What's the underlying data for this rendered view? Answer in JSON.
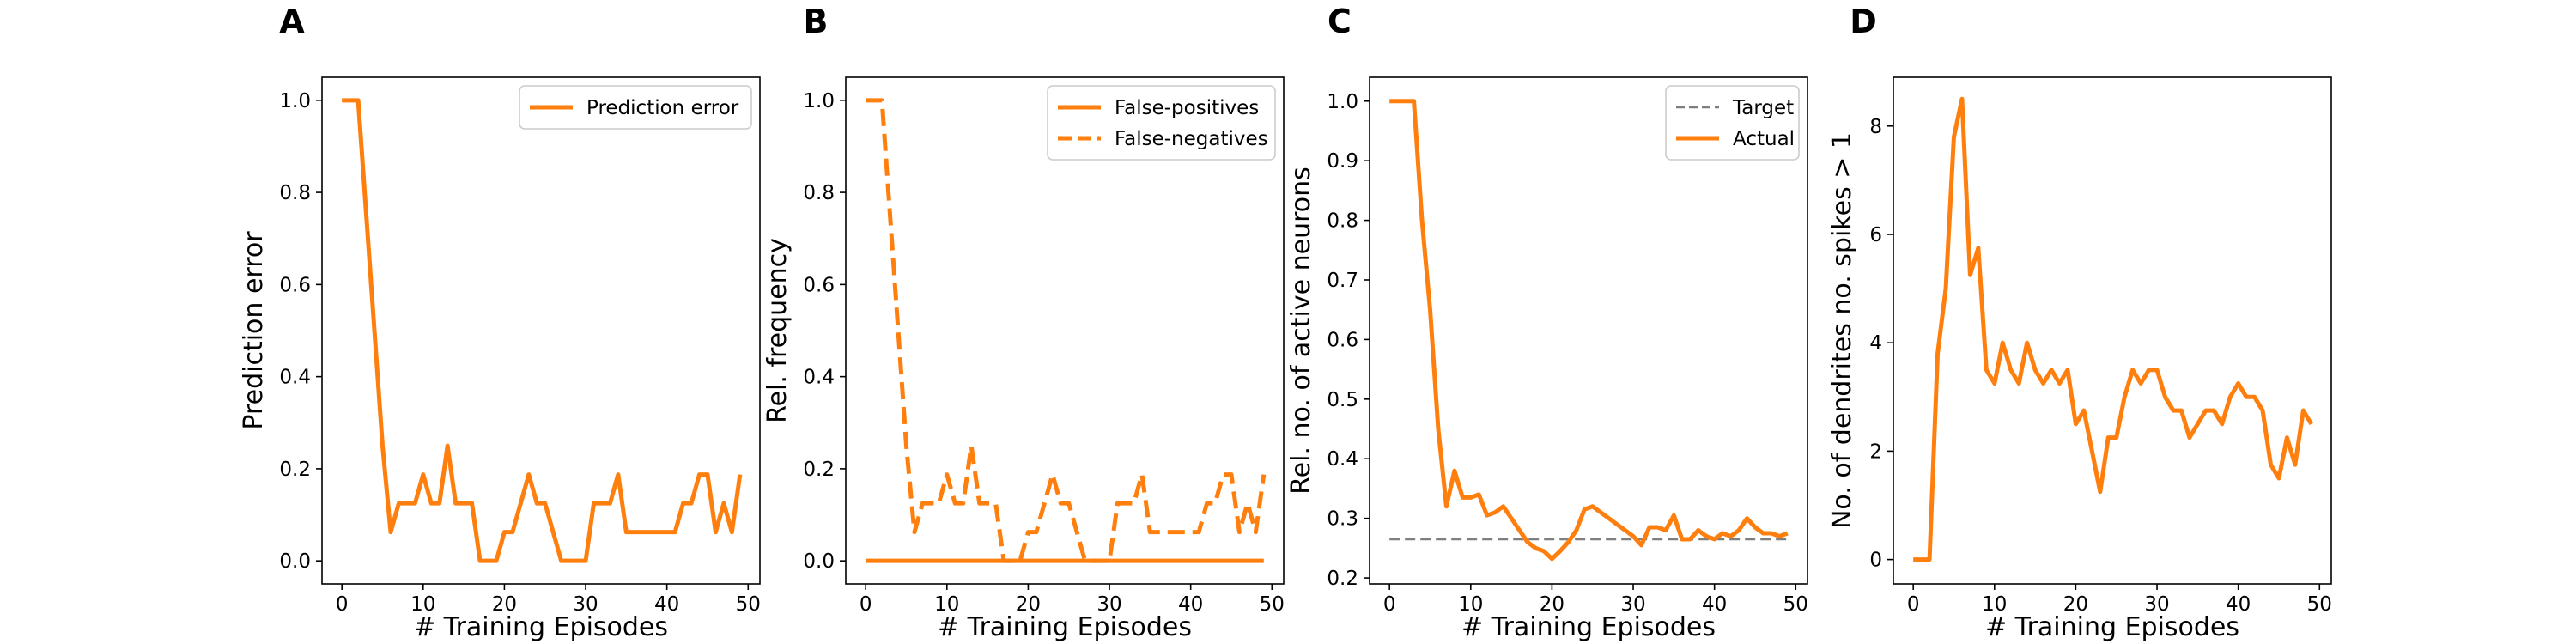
{
  "chart_data": [
    {
      "panel": "A",
      "type": "line",
      "xlabel": "# Training Episodes",
      "ylabel": "Prediction error",
      "xlim": [
        -2.45,
        51.45
      ],
      "ylim": [
        -0.05,
        1.05
      ],
      "xticks": [
        0,
        10,
        20,
        30,
        40,
        50
      ],
      "yticks": [
        0.0,
        0.2,
        0.4,
        0.6,
        0.8,
        1.0
      ],
      "ytick_labels": [
        "0.0",
        "0.2",
        "0.4",
        "0.6",
        "0.8",
        "1.0"
      ],
      "legend_position": "top-right",
      "series": [
        {
          "name": "Prediction error",
          "color": "#ff7f0e",
          "style": "solid",
          "x": [
            0,
            1,
            2,
            3,
            4,
            5,
            6,
            7,
            8,
            9,
            10,
            11,
            12,
            13,
            14,
            15,
            16,
            17,
            18,
            19,
            20,
            21,
            22,
            23,
            24,
            25,
            26,
            27,
            28,
            29,
            30,
            31,
            32,
            33,
            34,
            35,
            36,
            37,
            38,
            39,
            40,
            41,
            42,
            43,
            44,
            45,
            46,
            47,
            48,
            49
          ],
          "y": [
            1.0,
            1.0,
            1.0,
            0.75,
            0.5,
            0.25,
            0.0625,
            0.125,
            0.125,
            0.125,
            0.1875,
            0.125,
            0.125,
            0.25,
            0.125,
            0.125,
            0.125,
            0.0,
            0.0,
            0.0,
            0.0625,
            0.0625,
            0.125,
            0.1875,
            0.125,
            0.125,
            0.0625,
            0.0,
            0.0,
            0.0,
            0.0,
            0.125,
            0.125,
            0.125,
            0.1875,
            0.0625,
            0.0625,
            0.0625,
            0.0625,
            0.0625,
            0.0625,
            0.0625,
            0.125,
            0.125,
            0.1875,
            0.1875,
            0.0625,
            0.125,
            0.0625,
            0.1875
          ]
        }
      ]
    },
    {
      "panel": "B",
      "type": "line",
      "xlabel": "# Training Episodes",
      "ylabel": "Rel. frequency",
      "xlim": [
        -2.45,
        51.45
      ],
      "ylim": [
        -0.05,
        1.05
      ],
      "xticks": [
        0,
        10,
        20,
        30,
        40,
        50
      ],
      "yticks": [
        0.0,
        0.2,
        0.4,
        0.6,
        0.8,
        1.0
      ],
      "ytick_labels": [
        "0.0",
        "0.2",
        "0.4",
        "0.6",
        "0.8",
        "1.0"
      ],
      "legend_position": "top-right",
      "series": [
        {
          "name": "False-positives",
          "color": "#ff7f0e",
          "style": "solid",
          "x": [
            0,
            49
          ],
          "y": [
            0.0,
            0.0
          ]
        },
        {
          "name": "False-negatives",
          "color": "#ff7f0e",
          "style": "dashed",
          "x": [
            0,
            1,
            2,
            3,
            4,
            5,
            6,
            7,
            8,
            9,
            10,
            11,
            12,
            13,
            14,
            15,
            16,
            17,
            18,
            19,
            20,
            21,
            22,
            23,
            24,
            25,
            26,
            27,
            28,
            29,
            30,
            31,
            32,
            33,
            34,
            35,
            36,
            37,
            38,
            39,
            40,
            41,
            42,
            43,
            44,
            45,
            46,
            47,
            48,
            49
          ],
          "y": [
            1.0,
            1.0,
            1.0,
            0.75,
            0.5,
            0.25,
            0.0625,
            0.125,
            0.125,
            0.125,
            0.1875,
            0.125,
            0.125,
            0.25,
            0.125,
            0.125,
            0.125,
            0.0,
            0.0,
            0.0,
            0.0625,
            0.0625,
            0.125,
            0.1875,
            0.125,
            0.125,
            0.0625,
            0.0,
            0.0,
            0.0,
            0.0,
            0.125,
            0.125,
            0.125,
            0.1875,
            0.0625,
            0.0625,
            0.0625,
            0.0625,
            0.0625,
            0.0625,
            0.0625,
            0.125,
            0.125,
            0.1875,
            0.1875,
            0.0625,
            0.125,
            0.0625,
            0.1875
          ]
        }
      ]
    },
    {
      "panel": "C",
      "type": "line",
      "xlabel": "# Training Episodes",
      "ylabel": "Rel. no. of active neurons",
      "xlim": [
        -2.45,
        51.45
      ],
      "ylim": [
        0.19,
        1.04
      ],
      "xticks": [
        0,
        10,
        20,
        30,
        40,
        50
      ],
      "yticks": [
        0.2,
        0.3,
        0.4,
        0.5,
        0.6,
        0.7,
        0.8,
        0.9,
        1.0
      ],
      "ytick_labels": [
        "0.2",
        "0.3",
        "0.4",
        "0.5",
        "0.6",
        "0.7",
        "0.8",
        "0.9",
        "1.0"
      ],
      "legend_position": "top-right",
      "series": [
        {
          "name": "Target",
          "color": "#7f7f7f",
          "style": "dashed",
          "x": [
            0,
            49
          ],
          "y": [
            0.265,
            0.265
          ]
        },
        {
          "name": "Actual",
          "color": "#ff7f0e",
          "style": "solid",
          "x": [
            0,
            1,
            2,
            3,
            4,
            5,
            6,
            7,
            8,
            9,
            10,
            11,
            12,
            13,
            14,
            15,
            16,
            17,
            18,
            19,
            20,
            21,
            22,
            23,
            24,
            25,
            26,
            27,
            28,
            29,
            30,
            31,
            32,
            33,
            34,
            35,
            36,
            37,
            38,
            39,
            40,
            41,
            42,
            43,
            44,
            45,
            46,
            47,
            48,
            49
          ],
          "y": [
            1.0,
            1.0,
            1.0,
            1.0,
            0.8,
            0.65,
            0.45,
            0.32,
            0.38,
            0.335,
            0.335,
            0.34,
            0.305,
            0.31,
            0.32,
            0.3,
            0.28,
            0.26,
            0.25,
            0.245,
            0.232,
            0.245,
            0.26,
            0.28,
            0.315,
            0.32,
            0.31,
            0.3,
            0.29,
            0.28,
            0.27,
            0.255,
            0.285,
            0.285,
            0.28,
            0.305,
            0.265,
            0.265,
            0.28,
            0.27,
            0.265,
            0.275,
            0.27,
            0.28,
            0.3,
            0.285,
            0.275,
            0.275,
            0.27,
            0.275
          ]
        }
      ]
    },
    {
      "panel": "D",
      "type": "line",
      "xlabel": "# Training Episodes",
      "ylabel": "No. of dendrites no. spikes > 1",
      "xlim": [
        -2.45,
        51.45
      ],
      "ylim": [
        -0.45,
        8.9
      ],
      "xticks": [
        0,
        10,
        20,
        30,
        40,
        50
      ],
      "yticks": [
        0,
        2,
        4,
        6,
        8
      ],
      "ytick_labels": [
        "0",
        "2",
        "4",
        "6",
        "8"
      ],
      "series": [
        {
          "name": "",
          "color": "#ff7f0e",
          "style": "solid",
          "x": [
            0,
            1,
            2,
            3,
            4,
            5,
            6,
            7,
            8,
            9,
            10,
            11,
            12,
            13,
            14,
            15,
            16,
            17,
            18,
            19,
            20,
            21,
            22,
            23,
            24,
            25,
            26,
            27,
            28,
            29,
            30,
            31,
            32,
            33,
            34,
            35,
            36,
            37,
            38,
            39,
            40,
            41,
            42,
            43,
            44,
            45,
            46,
            47,
            48,
            49
          ],
          "y": [
            0.0,
            0.0,
            0.0,
            3.8,
            5.0,
            7.8,
            8.5,
            5.25,
            5.75,
            3.5,
            3.25,
            4.0,
            3.5,
            3.25,
            4.0,
            3.5,
            3.25,
            3.5,
            3.25,
            3.5,
            2.5,
            2.75,
            2.0,
            1.25,
            2.25,
            2.25,
            3.0,
            3.5,
            3.25,
            3.5,
            3.5,
            3.0,
            2.75,
            2.75,
            2.25,
            2.5,
            2.75,
            2.75,
            2.5,
            3.0,
            3.25,
            3.0,
            3.0,
            2.75,
            1.75,
            1.5,
            2.25,
            1.75,
            2.75,
            2.5
          ]
        }
      ]
    }
  ]
}
